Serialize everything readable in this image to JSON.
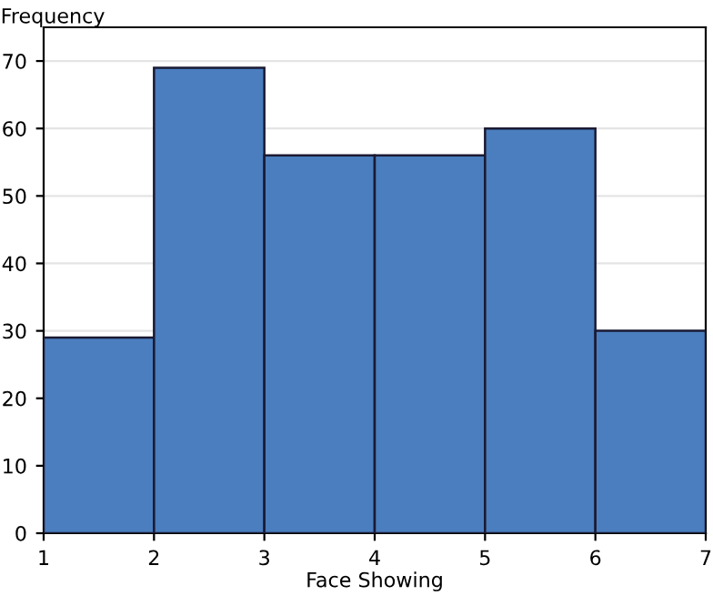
{
  "chart_data": {
    "type": "histogram",
    "xlabel": "Face Showing",
    "ylabel": "Frequency",
    "bins": [
      1,
      2,
      3,
      4,
      5,
      6,
      7
    ],
    "values": [
      29,
      69,
      56,
      56,
      60,
      30
    ],
    "color": "#4a7ebf",
    "xlim": [
      1,
      7
    ],
    "xticks": [
      1,
      2,
      3,
      4,
      5,
      6,
      7
    ],
    "ylim": [
      0,
      75
    ],
    "yticks": [
      0,
      10,
      20,
      30,
      40,
      50,
      60,
      70
    ],
    "grid": "y"
  }
}
